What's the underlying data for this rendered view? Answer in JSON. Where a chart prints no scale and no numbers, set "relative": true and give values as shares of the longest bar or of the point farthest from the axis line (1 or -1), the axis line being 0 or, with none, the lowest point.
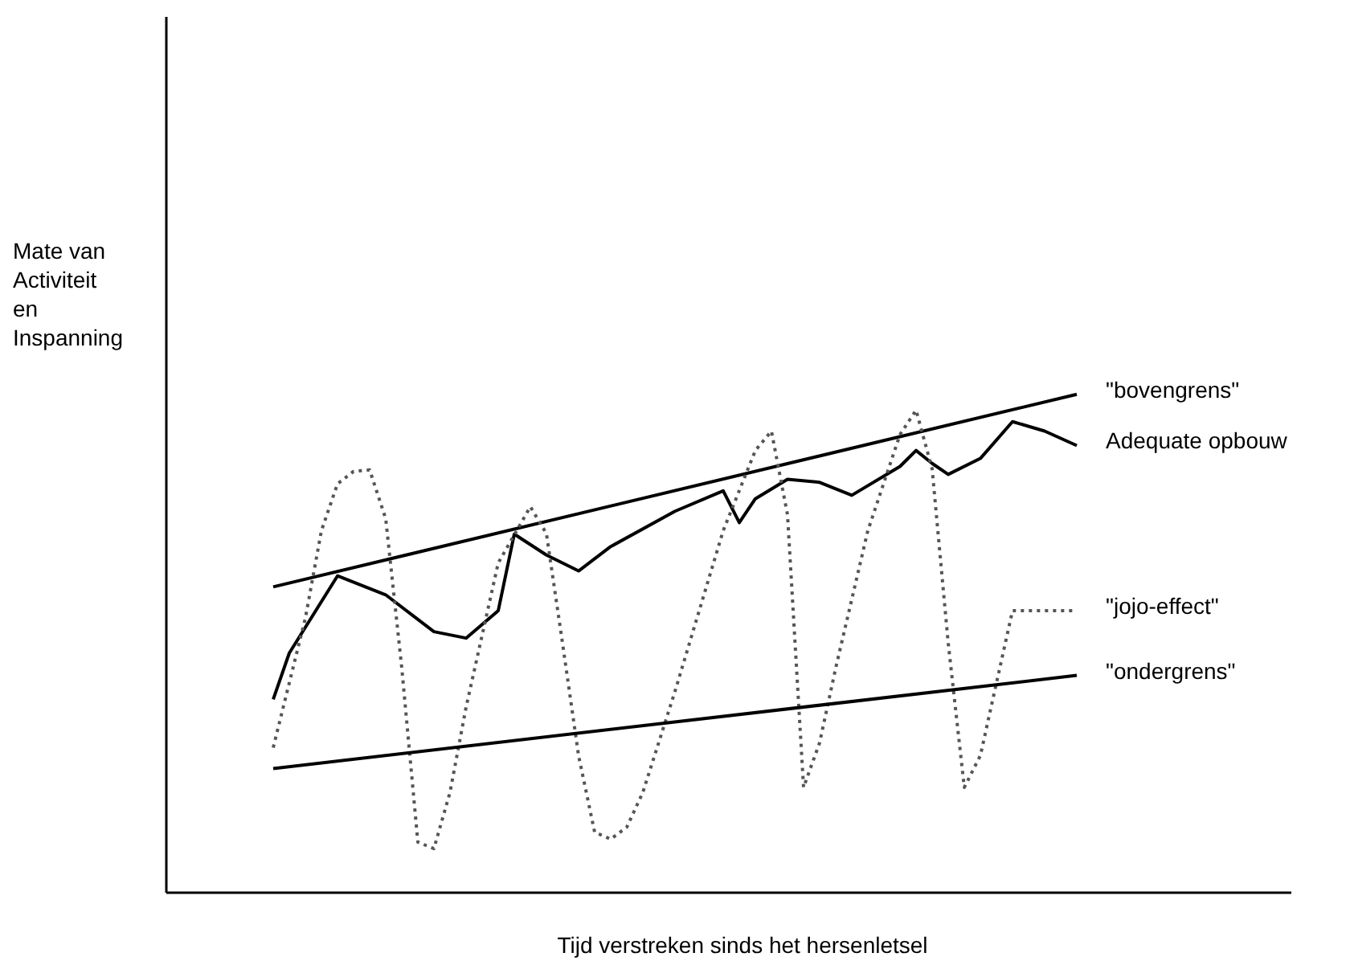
{
  "chart_data": {
    "type": "line",
    "relative": true,
    "xlabel": "Tijd verstreken sinds het hersenletsel",
    "annotations": [
      "Mate van\nActiviteit\nen\nInspanning"
    ],
    "tick_labels": false,
    "line_style": "solid",
    "categories": [
      null,
      null,
      null,
      null,
      null,
      null,
      null,
      null,
      null,
      null,
      null,
      null,
      null,
      null,
      null,
      null,
      null,
      null,
      null,
      null,
      null,
      null,
      null,
      null,
      null,
      null,
      null,
      null,
      null,
      null,
      null,
      null,
      null,
      null,
      null,
      null,
      null,
      null,
      null,
      null,
      null,
      null,
      null,
      null,
      null,
      null,
      null,
      null,
      null,
      null,
      null
    ],
    "series": [
      {
        "name": "\"bovengrens\"",
        "color": "#000000",
        "values": [
          0.613,
          null,
          null,
          null,
          null,
          null,
          null,
          null,
          null,
          null,
          null,
          null,
          null,
          null,
          null,
          null,
          null,
          null,
          null,
          null,
          null,
          null,
          null,
          null,
          null,
          null,
          null,
          null,
          null,
          null,
          null,
          null,
          null,
          null,
          null,
          null,
          null,
          null,
          null,
          null,
          null,
          null,
          null,
          null,
          null,
          null,
          null,
          null,
          null,
          null,
          1.0
        ]
      },
      {
        "name": "Adequate opbouw",
        "color": "#000000",
        "values": [
          0.387,
          0.48,
          null,
          null,
          0.635,
          null,
          null,
          0.597,
          null,
          null,
          0.523,
          null,
          0.51,
          null,
          0.565,
          0.719,
          null,
          0.677,
          null,
          0.645,
          null,
          0.694,
          null,
          null,
          null,
          0.765,
          null,
          null,
          0.806,
          0.742,
          0.79,
          null,
          0.829,
          null,
          0.823,
          null,
          0.797,
          null,
          null,
          0.855,
          0.887,
          0.861,
          0.839,
          null,
          0.871,
          null,
          0.945,
          null,
          0.926,
          null,
          0.897
        ]
      },
      {
        "name": "\"jojo-effect\"",
        "color": "#555555",
        "line_style": "dotted",
        "values": [
          0.29,
          null,
          0.55,
          0.726,
          0.82,
          0.845,
          0.848,
          0.75,
          0.45,
          0.1,
          0.087,
          0.2,
          0.371,
          null,
          0.661,
          null,
          0.774,
          0.72,
          0.5,
          0.274,
          0.12,
          0.106,
          0.13,
          0.2,
          null,
          0.403,
          null,
          null,
          0.726,
          null,
          0.887,
          0.926,
          0.758,
          0.21,
          0.3,
          0.45,
          null,
          0.726,
          null,
          0.919,
          0.968,
          0.85,
          0.5,
          0.21,
          0.274,
          null,
          0.565,
          null,
          0.565,
          null,
          0.565
        ]
      },
      {
        "name": "\"ondergrens\"",
        "color": "#000000",
        "values": [
          0.248,
          null,
          null,
          null,
          null,
          null,
          null,
          null,
          null,
          null,
          null,
          null,
          null,
          null,
          null,
          null,
          null,
          null,
          null,
          null,
          null,
          null,
          null,
          null,
          null,
          null,
          null,
          null,
          null,
          null,
          null,
          null,
          null,
          null,
          null,
          null,
          null,
          null,
          null,
          null,
          null,
          null,
          null,
          null,
          null,
          null,
          null,
          null,
          null,
          null,
          0.435
        ]
      }
    ]
  }
}
